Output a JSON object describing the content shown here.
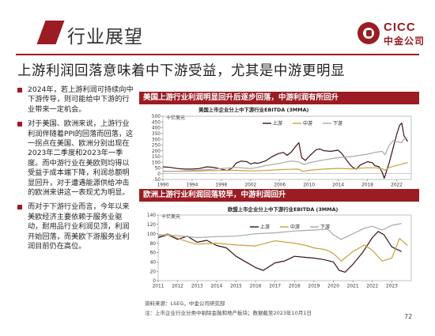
{
  "header": {
    "section_title": "行业展望",
    "logo_en": "CICC",
    "logo_cn": "中金公司"
  },
  "headline": "上游利润回落意味着中下游受益，尤其是中游更明显",
  "bullets": [
    "2024年，若上游利润可持续向中下游传导，则可能给中下游的行业带来一定机会。",
    "对于美国、欧洲来说，上游行业利润伴随着PPI的回落而回落，这一拐点在美国、欧洲分别出现在2023年二季度和2023年一季度。而中游行业在美欧则均得以受益于成本端下降，利润总额明显回升，对于遭遇能源供给冲击的欧洲来讲这一表现尤为明显。",
    "而对于下游行业而言，今年以来美欧经济主要依赖于服务业驱动，耐用品行业利润见顶，利润开始回落，而美欧下游服务业利润目前仍在高位。"
  ],
  "colors": {
    "upstream": "#3b1216",
    "midstream": "#c9a13a",
    "downstream": "#a8a8a8",
    "accent": "#9b1c22"
  },
  "chart_data": [
    {
      "type": "line",
      "panel_title": "美国上游行业利润明显回升后逐步回落，中游利润有所回升",
      "title": "美国上市企业分上中下游行业EBITDA (3MMA)",
      "unit_label": "十亿美元",
      "xlim": [
        1990,
        2024
      ],
      "ylim": [
        -50,
        500
      ],
      "yticks": [
        -50,
        0,
        50,
        100,
        150,
        200,
        250,
        300,
        350,
        400,
        450,
        500
      ],
      "xticks": [
        1990,
        1994,
        1998,
        2002,
        2006,
        2010,
        2014,
        2018,
        2022
      ],
      "legend_position": "top-right",
      "series": [
        {
          "name": "上游",
          "color_key": "upstream",
          "x": [
            1990,
            1991,
            1992,
            1993,
            1994,
            1995,
            1996,
            1997,
            1998,
            1998.8,
            1999.5,
            2000,
            2000.7,
            2001.5,
            2002,
            2002.5,
            2003,
            2004,
            2005,
            2005.8,
            2006.5,
            2007,
            2007.6,
            2008.2,
            2008.6,
            2009,
            2009.5,
            2010,
            2011,
            2011.5,
            2012,
            2013,
            2014,
            2014.5,
            2015,
            2015.6,
            2016,
            2016.5,
            2017,
            2018,
            2018.7,
            2019,
            2019.6,
            2020,
            2020.3,
            2020.6,
            2021,
            2021.5,
            2022,
            2022.4,
            2022.7,
            2023,
            2023.5
          ],
          "values": [
            60,
            55,
            45,
            40,
            40,
            45,
            60,
            55,
            40,
            28,
            50,
            90,
            110,
            105,
            85,
            95,
            90,
            110,
            150,
            175,
            185,
            160,
            190,
            240,
            270,
            140,
            115,
            150,
            210,
            215,
            200,
            195,
            205,
            175,
            130,
            80,
            55,
            40,
            75,
            105,
            95,
            70,
            60,
            15,
            -40,
            20,
            100,
            220,
            340,
            420,
            440,
            330,
            280
          ]
        },
        {
          "name": "中游",
          "color_key": "midstream",
          "x": [
            1990,
            1992,
            1994,
            1996,
            1998,
            2000,
            2001,
            2002,
            2004,
            2006,
            2007.5,
            2008.5,
            2009.2,
            2010,
            2012,
            2014,
            2016,
            2017,
            2018,
            2019,
            2020,
            2020.4,
            2021,
            2022,
            2022.7,
            2023,
            2023.5
          ],
          "values": [
            22,
            20,
            22,
            26,
            28,
            30,
            26,
            24,
            28,
            36,
            38,
            40,
            20,
            30,
            40,
            46,
            42,
            48,
            52,
            52,
            45,
            30,
            55,
            72,
            82,
            90,
            95
          ]
        },
        {
          "name": "下游",
          "color_key": "downstream",
          "x": [
            1990,
            1992,
            1994,
            1996,
            1998,
            2000,
            2001,
            2002,
            2003,
            2004,
            2006,
            2007.5,
            2008.5,
            2009.3,
            2010,
            2012,
            2014,
            2016,
            2018,
            2019,
            2020,
            2020.4,
            2021,
            2021.6,
            2022,
            2022.7,
            2023,
            2023.5
          ],
          "values": [
            20,
            22,
            28,
            35,
            45,
            55,
            50,
            45,
            55,
            70,
            90,
            110,
            105,
            80,
            95,
            120,
            140,
            150,
            170,
            185,
            195,
            165,
            250,
            290,
            280,
            270,
            300,
            310
          ]
        }
      ]
    },
    {
      "type": "line",
      "panel_title": "欧洲上游行业利润回落较早，中游利润回升",
      "title": "欧盟上市企业分上中下游行业EBITDA (3MMA)",
      "unit_label": "十亿美元",
      "xlim": [
        2011,
        2024
      ],
      "ylim": [
        0,
        140
      ],
      "yticks": [
        0,
        20,
        40,
        60,
        80,
        100,
        120,
        140
      ],
      "xticks": [
        2011,
        2012,
        2013,
        2014,
        2015,
        2016,
        2017,
        2018,
        2019,
        2020,
        2021,
        2022,
        2023
      ],
      "legend_position": "top-center",
      "series": [
        {
          "name": "上游",
          "color_key": "upstream",
          "x": [
            2011,
            2011.5,
            2012,
            2012.5,
            2013,
            2013.5,
            2014,
            2014.5,
            2015,
            2015.5,
            2016,
            2016.4,
            2017,
            2017.5,
            2018,
            2018.5,
            2019,
            2019.5,
            2020,
            2020.3,
            2020.6,
            2021,
            2021.5,
            2022,
            2022.3,
            2022.6,
            2023,
            2023.5
          ],
          "values": [
            92,
            98,
            88,
            95,
            82,
            86,
            75,
            70,
            52,
            40,
            28,
            22,
            38,
            42,
            52,
            50,
            48,
            45,
            40,
            22,
            18,
            35,
            60,
            92,
            105,
            98,
            72,
            62
          ]
        },
        {
          "name": "中游",
          "color_key": "midstream",
          "x": [
            2011,
            2011.5,
            2012,
            2012.6,
            2013,
            2014,
            2015,
            2016,
            2017,
            2018,
            2018.6,
            2019,
            2019.6,
            2020,
            2020.4,
            2021,
            2021.6,
            2022,
            2022.5,
            2023,
            2023.4,
            2023.8
          ],
          "values": [
            95,
            100,
            90,
            82,
            78,
            80,
            76,
            74,
            85,
            80,
            75,
            70,
            66,
            58,
            42,
            62,
            76,
            65,
            42,
            48,
            90,
            75
          ]
        },
        {
          "name": "下游",
          "color_key": "downstream",
          "x": [
            2011,
            2012,
            2013,
            2014,
            2015,
            2016,
            2017,
            2018,
            2019,
            2019.7,
            2020,
            2020.4,
            2021,
            2021.6,
            2022,
            2022.5,
            2023,
            2023.5
          ],
          "values": [
            98,
            96,
            92,
            94,
            95,
            100,
            102,
            106,
            108,
            110,
            98,
            88,
            100,
            112,
            116,
            108,
            118,
            122
          ]
        }
      ]
    }
  ],
  "footnotes": {
    "source": "资料来源：LSEG，中金公司研究部",
    "note": "注：上市企业行业分类中剔除金融和地产板块；数据截至2023年10月1日"
  },
  "page_number": "72"
}
